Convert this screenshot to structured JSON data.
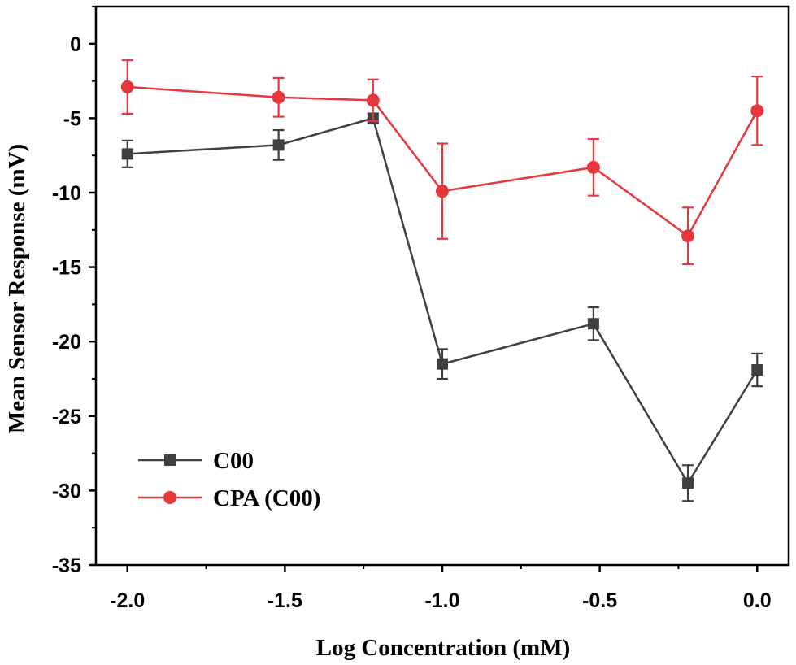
{
  "chart_data": {
    "type": "line",
    "xlabel": "Log Concentration (mM)",
    "ylabel": "Mean Sensor Response (mV)",
    "xlim": [
      -2.1,
      0.1
    ],
    "ylim": [
      -35,
      2.5
    ],
    "x_ticks": [
      -2.0,
      -1.5,
      -1.0,
      -0.5,
      0.0
    ],
    "x_tick_labels": [
      "-2.0",
      "-1.5",
      "-1.0",
      "-0.5",
      "0.0"
    ],
    "y_ticks": [
      0,
      -5,
      -10,
      -15,
      -20,
      -25,
      -30,
      -35
    ],
    "y_tick_labels": [
      "0",
      "-5",
      "-10",
      "-15",
      "-20",
      "-25",
      "-30",
      "-35"
    ],
    "legend_position": "bottom-left",
    "grid": false,
    "series": [
      {
        "name": "C00",
        "color": "#404040",
        "marker": "square",
        "x": [
          -2.0,
          -1.52,
          -1.22,
          -1.0,
          -0.52,
          -0.22,
          0.0
        ],
        "y": [
          -7.4,
          -6.8,
          -5.0,
          -21.5,
          -18.8,
          -29.5,
          -21.9
        ],
        "err": [
          0.9,
          1.0,
          0.3,
          1.0,
          1.1,
          1.2,
          1.1
        ]
      },
      {
        "name": "CPA (C00)",
        "color": "#e8373c",
        "marker": "circle",
        "x": [
          -2.0,
          -1.52,
          -1.22,
          -1.0,
          -0.52,
          -0.22,
          0.0
        ],
        "y": [
          -2.9,
          -3.6,
          -3.8,
          -9.9,
          -8.3,
          -12.9,
          -4.5
        ],
        "err": [
          1.8,
          1.3,
          1.4,
          3.2,
          1.9,
          1.9,
          2.3
        ]
      }
    ]
  }
}
